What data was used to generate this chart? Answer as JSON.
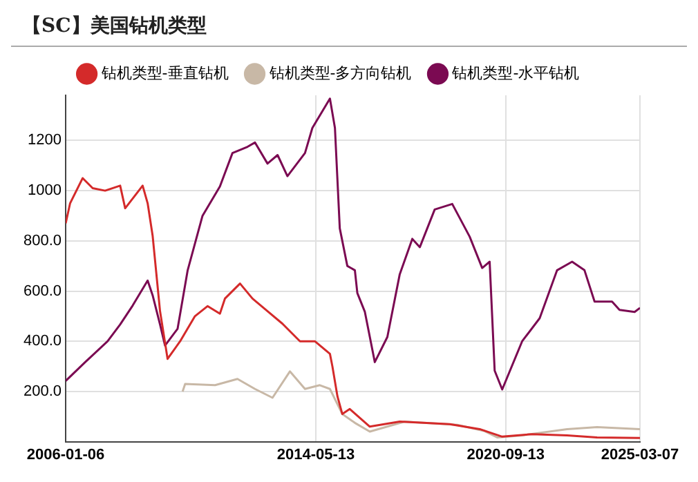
{
  "chart_data": {
    "type": "line",
    "title": "【SC】美国钻机类型",
    "series": [
      {
        "name": "钻机类型-垂直钻机",
        "color": "#d42a2a",
        "x": [
          "2006-01-06",
          "2006-03",
          "2006-08",
          "2006-12",
          "2007-05",
          "2007-11",
          "2008-01",
          "2008-08",
          "2008-10",
          "2008-12",
          "2009-03",
          "2009-06",
          "2009-11",
          "2010-05",
          "2010-10",
          "2011-03",
          "2011-05",
          "2011-11",
          "2012-04",
          "2012-10",
          "2013-04",
          "2013-11",
          "2014-05",
          "2014-11",
          "2014-12",
          "2015-02",
          "2015-04",
          "2015-07",
          "2016-03",
          "2017-03",
          "2018-11",
          "2019-11",
          "2020-08",
          "2021-08",
          "2022-10",
          "2023-10",
          "2025-03-07"
        ],
        "values": [
          870,
          950,
          1050,
          1010,
          1000,
          1020,
          930,
          1020,
          950,
          820,
          520,
          330,
          400,
          500,
          540,
          510,
          570,
          630,
          570,
          520,
          470,
          400,
          400,
          350,
          300,
          180,
          110,
          130,
          60,
          80,
          70,
          50,
          20,
          30,
          25,
          17,
          15
        ]
      },
      {
        "name": "钻机类型-多方向钻机",
        "color": "#c8b8a6",
        "x": [
          "2009-12",
          "2010-01",
          "2011-01",
          "2011-10",
          "2012-05",
          "2012-12",
          "2013-07",
          "2014-01",
          "2014-07",
          "2014-11",
          "2015-04",
          "2015-09",
          "2016-03",
          "2017-05",
          "2019-02",
          "2020-01",
          "2020-06",
          "2021-04",
          "2022-10",
          "2023-10",
          "2025-03-07"
        ],
        "values": [
          200,
          230,
          225,
          250,
          210,
          175,
          280,
          210,
          225,
          210,
          110,
          75,
          40,
          80,
          67,
          42,
          17,
          25,
          50,
          58,
          50
        ]
      },
      {
        "name": "钻机类型-水平钻机",
        "color": "#7b0a52",
        "x": [
          "2006-01-06",
          "2006-09",
          "2007-06",
          "2007-11",
          "2008-04",
          "2008-10",
          "2008-12",
          "2009-03",
          "2009-05",
          "2009-10",
          "2010-02",
          "2010-08",
          "2011-03",
          "2011-08",
          "2012-02",
          "2012-05",
          "2012-10",
          "2013-02",
          "2013-06",
          "2014-01",
          "2014-04",
          "2014-11",
          "2015-01",
          "2015-03",
          "2015-06",
          "2015-09",
          "2015-10",
          "2016-01",
          "2016-05",
          "2016-10",
          "2017-03",
          "2017-08",
          "2017-11",
          "2018-05",
          "2018-12",
          "2019-07",
          "2019-12",
          "2020-03",
          "2020-05",
          "2020-08",
          "2021-04",
          "2021-11",
          "2022-06",
          "2022-12",
          "2023-05",
          "2023-09",
          "2024-04",
          "2024-07",
          "2025-01",
          "2025-03-07"
        ],
        "values": [
          242,
          317,
          400,
          467,
          542,
          642,
          583,
          467,
          383,
          450,
          683,
          900,
          1017,
          1150,
          1175,
          1192,
          1108,
          1142,
          1058,
          1150,
          1250,
          1367,
          1250,
          850,
          700,
          683,
          592,
          517,
          317,
          417,
          667,
          808,
          775,
          925,
          947,
          817,
          692,
          717,
          283,
          208,
          400,
          492,
          683,
          717,
          683,
          558,
          558,
          525,
          517,
          533
        ]
      }
    ],
    "xlim": [
      "2006-01-06",
      "2025-03-07"
    ],
    "xticks": [
      "2006-01-06",
      "2014-05-13",
      "2020-09-13",
      "2025-03-07"
    ],
    "ylim": [
      0,
      1380
    ],
    "yticks": [
      {
        "value": 200,
        "label": "200.0"
      },
      {
        "value": 400,
        "label": "400.0"
      },
      {
        "value": 600,
        "label": "600.0"
      },
      {
        "value": 800,
        "label": "800.0"
      },
      1000,
      1200
    ],
    "grid": true,
    "legend": "top"
  }
}
